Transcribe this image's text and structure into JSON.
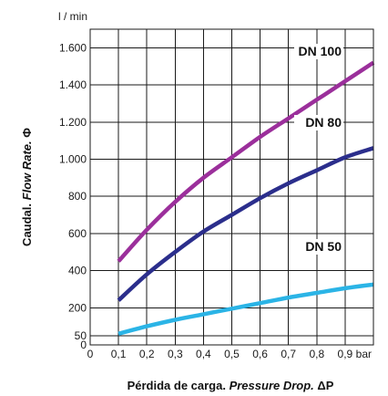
{
  "chart_data": {
    "type": "line",
    "y_unit": "l / min",
    "x_unit": "bar",
    "xlabel": {
      "prefix": "Pérdida de carga. ",
      "italic": "Pressure Drop.",
      "suffix": " ΔP"
    },
    "ylabel": {
      "prefix": "Caudal. ",
      "italic": "Flow Rate.",
      "suffix": " Φ"
    },
    "x_ticks": [
      {
        "value": 0,
        "label": "0"
      },
      {
        "value": 0.1,
        "label": "0,1"
      },
      {
        "value": 0.2,
        "label": "0,2"
      },
      {
        "value": 0.3,
        "label": "0,3"
      },
      {
        "value": 0.4,
        "label": "0,4"
      },
      {
        "value": 0.5,
        "label": "0,5"
      },
      {
        "value": 0.6,
        "label": "0,6"
      },
      {
        "value": 0.7,
        "label": "0,7"
      },
      {
        "value": 0.8,
        "label": "0,8"
      },
      {
        "value": 0.9,
        "label": "0,9"
      }
    ],
    "y_ticks": [
      {
        "value": 0,
        "label": "0"
      },
      {
        "value": 50,
        "label": "50"
      },
      {
        "value": 200,
        "label": "200"
      },
      {
        "value": 400,
        "label": "400"
      },
      {
        "value": 600,
        "label": "600"
      },
      {
        "value": 800,
        "label": "800"
      },
      {
        "value": 1000,
        "label": "1.000"
      },
      {
        "value": 1200,
        "label": "1.200"
      },
      {
        "value": 1400,
        "label": "1.400"
      },
      {
        "value": 1600,
        "label": "1.600"
      }
    ],
    "xlim": [
      0,
      1.0
    ],
    "ylim": [
      0,
      1700
    ],
    "grid": true,
    "series": [
      {
        "name": "DN 100",
        "color": "#9b2f9b",
        "x": [
          0.1,
          0.2,
          0.3,
          0.4,
          0.5,
          0.6,
          0.7,
          0.8,
          0.9,
          1.0
        ],
        "values": [
          450,
          620,
          770,
          900,
          1010,
          1120,
          1220,
          1320,
          1420,
          1520
        ]
      },
      {
        "name": "DN 80",
        "color": "#2b2e8c",
        "x": [
          0.1,
          0.2,
          0.3,
          0.4,
          0.5,
          0.6,
          0.7,
          0.8,
          0.9,
          1.0
        ],
        "values": [
          240,
          380,
          500,
          610,
          700,
          790,
          870,
          940,
          1010,
          1060
        ]
      },
      {
        "name": "DN 50",
        "color": "#2bb4e6",
        "x": [
          0.1,
          0.2,
          0.3,
          0.4,
          0.5,
          0.6,
          0.7,
          0.8,
          0.9,
          1.0
        ],
        "values": [
          60,
          100,
          135,
          165,
          195,
          225,
          255,
          280,
          305,
          325
        ]
      }
    ]
  }
}
